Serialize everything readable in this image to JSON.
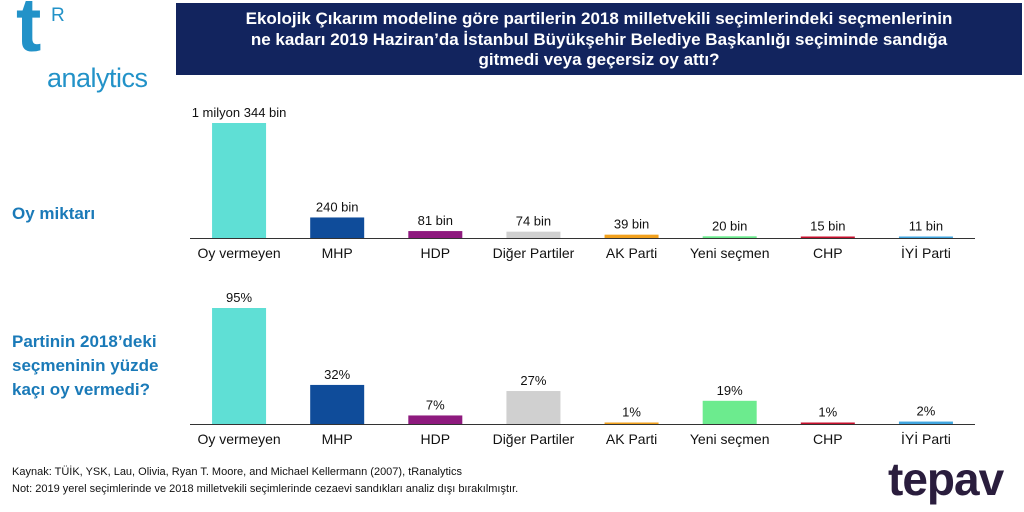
{
  "logo": {
    "letter": "t",
    "superscript": "R",
    "word": "analytics"
  },
  "title_lines": [
    "Ekolojik Çıkarım modeline göre partilerin 2018 milletvekili seçimlerindeki seçmenlerinin",
    "ne kadarı 2019 Haziran’da İstanbul Büyükşehir Belediye Başkanlığı seçiminde sandığa",
    "gitmedi veya geçersiz oy attı?"
  ],
  "section_labels": {
    "top": "Oy miktarı",
    "bottom": [
      "Partinin 2018’deki",
      "seçmeninin yüzde",
      "kaçı oy vermedi?"
    ]
  },
  "footnotes": [
    "Kaynak: TÜİK, YSK, Lau, Olivia, Ryan T. Moore, and Michael Kellermann (2007), tRanalytics",
    "Not: 2019 yerel seçimlerinde ve 2018 milletvekili seçimlerinde cezaevi sandıkları analiz dışı bırakılmıştır."
  ],
  "brand": "tepav",
  "colors": {
    "title_bg": "#12245e",
    "accent": "#1a7ab8",
    "bars": [
      "#5fdfd5",
      "#0f4c9a",
      "#8e1a7e",
      "#d0d0d0",
      "#f2a11d",
      "#6ceb8e",
      "#c8102e",
      "#41a6e0"
    ]
  },
  "chart_data": [
    {
      "type": "bar",
      "categories": [
        "Oy vermeyen",
        "MHP",
        "HDP",
        "Diğer Partiler",
        "AK Parti",
        "Yeni seçmen",
        "CHP",
        "İYİ Parti"
      ],
      "values": [
        1344,
        240,
        81,
        74,
        39,
        20,
        15,
        11
      ],
      "data_labels": [
        "1 milyon 344 bin",
        "240 bin",
        "81 bin",
        "74 bin",
        "39 bin",
        "20 bin",
        "15 bin",
        "11 bin"
      ],
      "unit": "bin",
      "ylim": [
        0,
        1344
      ],
      "grid": false
    },
    {
      "type": "bar",
      "categories": [
        "Oy vermeyen",
        "MHP",
        "HDP",
        "Diğer Partiler",
        "AK Parti",
        "Yeni seçmen",
        "CHP",
        "İYİ Parti"
      ],
      "values": [
        95,
        32,
        7,
        27,
        1,
        19,
        1,
        2
      ],
      "data_labels": [
        "95%",
        "32%",
        "7%",
        "27%",
        "1%",
        "19%",
        "1%",
        "2%"
      ],
      "unit": "%",
      "ylim": [
        0,
        95
      ],
      "grid": false
    }
  ]
}
